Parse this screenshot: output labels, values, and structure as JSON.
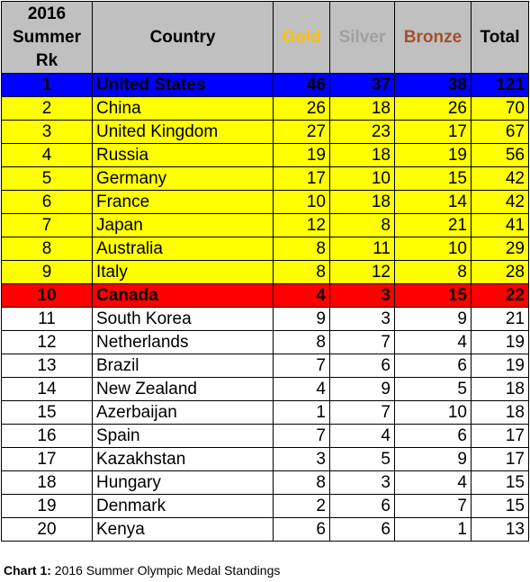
{
  "chart_data": {
    "type": "table",
    "columns": [
      "2016 Summer Rk",
      "Country",
      "Gold",
      "Silver",
      "Bronze",
      "Total"
    ],
    "rows": [
      {
        "rank": "1",
        "country": "United States",
        "gold": "46",
        "silver": "37",
        "bronze": "38",
        "total": "121",
        "style": "blue"
      },
      {
        "rank": "2",
        "country": "China",
        "gold": "26",
        "silver": "18",
        "bronze": "26",
        "total": "70",
        "style": "yellow"
      },
      {
        "rank": "3",
        "country": "United Kingdom",
        "gold": "27",
        "silver": "23",
        "bronze": "17",
        "total": "67",
        "style": "yellow"
      },
      {
        "rank": "4",
        "country": "Russia",
        "gold": "19",
        "silver": "18",
        "bronze": "19",
        "total": "56",
        "style": "yellow"
      },
      {
        "rank": "5",
        "country": "Germany",
        "gold": "17",
        "silver": "10",
        "bronze": "15",
        "total": "42",
        "style": "yellow"
      },
      {
        "rank": "6",
        "country": "France",
        "gold": "10",
        "silver": "18",
        "bronze": "14",
        "total": "42",
        "style": "yellow"
      },
      {
        "rank": "7",
        "country": "Japan",
        "gold": "12",
        "silver": "8",
        "bronze": "21",
        "total": "41",
        "style": "yellow"
      },
      {
        "rank": "8",
        "country": "Australia",
        "gold": "8",
        "silver": "11",
        "bronze": "10",
        "total": "29",
        "style": "yellow"
      },
      {
        "rank": "9",
        "country": "Italy",
        "gold": "8",
        "silver": "12",
        "bronze": "8",
        "total": "28",
        "style": "yellow"
      },
      {
        "rank": "10",
        "country": "Canada",
        "gold": "4",
        "silver": "3",
        "bronze": "15",
        "total": "22",
        "style": "red"
      },
      {
        "rank": "11",
        "country": "South Korea",
        "gold": "9",
        "silver": "3",
        "bronze": "9",
        "total": "21",
        "style": "plain"
      },
      {
        "rank": "12",
        "country": "Netherlands",
        "gold": "8",
        "silver": "7",
        "bronze": "4",
        "total": "19",
        "style": "plain"
      },
      {
        "rank": "13",
        "country": "Brazil",
        "gold": "7",
        "silver": "6",
        "bronze": "6",
        "total": "19",
        "style": "plain"
      },
      {
        "rank": "14",
        "country": "New Zealand",
        "gold": "4",
        "silver": "9",
        "bronze": "5",
        "total": "18",
        "style": "plain"
      },
      {
        "rank": "15",
        "country": "Azerbaijan",
        "gold": "1",
        "silver": "7",
        "bronze": "10",
        "total": "18",
        "style": "plain"
      },
      {
        "rank": "16",
        "country": "Spain",
        "gold": "7",
        "silver": "4",
        "bronze": "6",
        "total": "17",
        "style": "plain"
      },
      {
        "rank": "17",
        "country": "Kazakhstan",
        "gold": "3",
        "silver": "5",
        "bronze": "9",
        "total": "17",
        "style": "plain"
      },
      {
        "rank": "18",
        "country": "Hungary",
        "gold": "8",
        "silver": "3",
        "bronze": "4",
        "total": "15",
        "style": "plain"
      },
      {
        "rank": "19",
        "country": "Denmark",
        "gold": "2",
        "silver": "6",
        "bronze": "7",
        "total": "15",
        "style": "plain"
      },
      {
        "rank": "20",
        "country": "Kenya",
        "gold": "6",
        "silver": "6",
        "bronze": "1",
        "total": "13",
        "style": "plain"
      }
    ]
  },
  "header": {
    "rank_line1": "2016",
    "rank_line2": "Summer",
    "rank_line3": "Rk",
    "country": "Country",
    "gold": "Gold",
    "silver": "Silver",
    "bronze": "Bronze",
    "total": "Total"
  },
  "caption": {
    "label": "Chart 1:",
    "text": "2016 Summer Olympic Medal Standings"
  },
  "colors": {
    "header_bg": "#c0c0c0",
    "gold_text": "#FFC000",
    "silver_text": "#A0A0A0",
    "bronze_text": "#A0522D",
    "top_row_bg": "#0000FF",
    "highlight_row_bg": "#FFFF00",
    "canada_row_bg": "#FF0000"
  }
}
